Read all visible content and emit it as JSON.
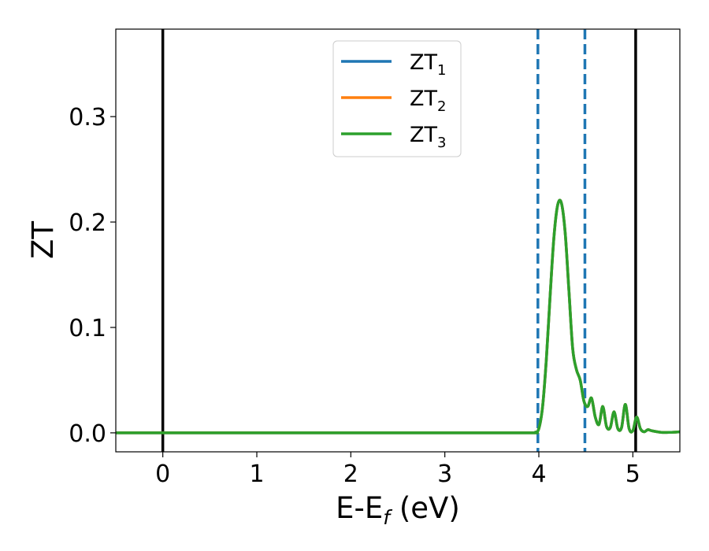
{
  "chart_data": {
    "type": "line",
    "xlabel": "E-E",
    "xlabel_sub": "f",
    "xlabel_unit": " (eV)",
    "ylabel": "ZT",
    "xlim": [
      -0.5,
      5.5
    ],
    "ylim": [
      -0.018,
      0.383
    ],
    "xticks": [
      0,
      1,
      2,
      3,
      4,
      5
    ],
    "xtick_labels": [
      "0",
      "1",
      "2",
      "3",
      "4",
      "5"
    ],
    "yticks": [
      0.0,
      0.1,
      0.2,
      0.3
    ],
    "ytick_labels": [
      "0.0",
      "0.1",
      "0.2",
      "0.3"
    ],
    "grid": false,
    "legend_position": "top-center",
    "vlines": [
      {
        "x": 0.0,
        "style": "solid",
        "color": "#000000"
      },
      {
        "x": 5.03,
        "style": "solid",
        "color": "#000000"
      },
      {
        "x": 3.99,
        "style": "dashed",
        "color": "#1f77b4"
      },
      {
        "x": 4.49,
        "style": "dashed",
        "color": "#1f77b4"
      }
    ],
    "series": [
      {
        "name": "ZT",
        "sub": "1",
        "color": "#1f77b4",
        "x": [
          -0.5,
          0,
          1,
          2,
          3,
          3.9,
          3.96,
          4.0,
          4.04,
          4.08,
          4.12,
          4.16,
          4.2,
          4.24,
          4.28,
          4.32,
          4.36,
          4.4,
          4.44,
          4.48,
          4.52,
          4.56,
          4.6,
          4.64,
          4.68,
          4.72,
          4.76,
          4.8,
          4.84,
          4.88,
          4.92,
          4.96,
          5.0,
          5.04,
          5.08,
          5.12,
          5.16,
          5.2,
          5.3,
          5.4,
          5.5
        ],
        "y": [
          0,
          0,
          0,
          0,
          0,
          0,
          0.0005,
          0.004,
          0.025,
          0.07,
          0.13,
          0.185,
          0.216,
          0.218,
          0.19,
          0.135,
          0.08,
          0.06,
          0.05,
          0.03,
          0.025,
          0.033,
          0.015,
          0.008,
          0.025,
          0.006,
          0.005,
          0.02,
          0.004,
          0.005,
          0.027,
          0.004,
          0.002,
          0.015,
          0.004,
          0.001,
          0.003,
          0.002,
          0.0005,
          0.0005,
          0.001
        ]
      },
      {
        "name": "ZT",
        "sub": "2",
        "color": "#ff7f0e",
        "x": [
          -0.5,
          0,
          1,
          2,
          3,
          3.9,
          3.96,
          4.0,
          4.04,
          4.08,
          4.12,
          4.16,
          4.2,
          4.24,
          4.28,
          4.32,
          4.36,
          4.4,
          4.44,
          4.48,
          4.52,
          4.56,
          4.6,
          4.64,
          4.68,
          4.72,
          4.76,
          4.8,
          4.84,
          4.88,
          4.92,
          4.96,
          5.0,
          5.04,
          5.08,
          5.12,
          5.16,
          5.2,
          5.3,
          5.4,
          5.5
        ],
        "y": [
          0,
          0,
          0,
          0,
          0,
          0,
          0.0005,
          0.004,
          0.025,
          0.07,
          0.13,
          0.185,
          0.216,
          0.218,
          0.19,
          0.135,
          0.08,
          0.06,
          0.05,
          0.03,
          0.025,
          0.033,
          0.015,
          0.008,
          0.025,
          0.006,
          0.005,
          0.02,
          0.004,
          0.005,
          0.027,
          0.004,
          0.002,
          0.015,
          0.004,
          0.001,
          0.003,
          0.002,
          0.0005,
          0.0005,
          0.001
        ]
      },
      {
        "name": "ZT",
        "sub": "3",
        "color": "#2ca02c",
        "x": [
          -0.5,
          0,
          1,
          2,
          3,
          3.9,
          3.96,
          4.0,
          4.04,
          4.08,
          4.12,
          4.16,
          4.2,
          4.24,
          4.28,
          4.32,
          4.36,
          4.4,
          4.44,
          4.48,
          4.52,
          4.56,
          4.6,
          4.64,
          4.68,
          4.72,
          4.76,
          4.8,
          4.84,
          4.88,
          4.92,
          4.96,
          5.0,
          5.04,
          5.08,
          5.12,
          5.16,
          5.2,
          5.3,
          5.4,
          5.5
        ],
        "y": [
          0,
          0,
          0,
          0,
          0,
          0,
          0.0005,
          0.004,
          0.025,
          0.07,
          0.13,
          0.185,
          0.216,
          0.218,
          0.19,
          0.135,
          0.08,
          0.06,
          0.05,
          0.03,
          0.025,
          0.033,
          0.015,
          0.008,
          0.025,
          0.006,
          0.005,
          0.02,
          0.004,
          0.005,
          0.027,
          0.004,
          0.002,
          0.015,
          0.004,
          0.001,
          0.003,
          0.002,
          0.0005,
          0.0005,
          0.001
        ]
      }
    ]
  }
}
